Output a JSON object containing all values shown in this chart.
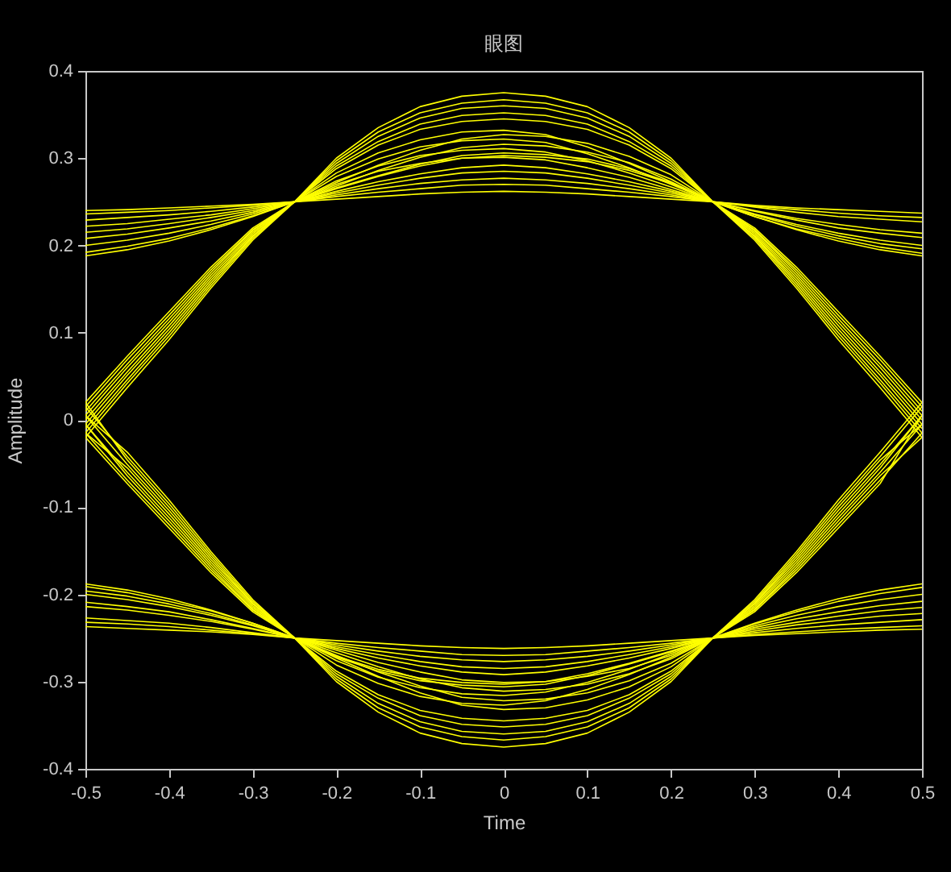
{
  "chart_data": {
    "type": "line",
    "title": "眼图",
    "xlabel": "Time",
    "ylabel": "Amplitude",
    "x": [
      -0.5,
      -0.45,
      -0.4,
      -0.35,
      -0.3,
      -0.25,
      -0.2,
      -0.15,
      -0.1,
      -0.05,
      0,
      0.05,
      0.1,
      0.15,
      0.2,
      0.25,
      0.3,
      0.35,
      0.4,
      0.45,
      0.5
    ],
    "xlim": [
      -0.5,
      0.5
    ],
    "ylim": [
      -0.4,
      0.4
    ],
    "xticks": [
      -0.5,
      -0.4,
      -0.3,
      -0.2,
      -0.1,
      0,
      0.1,
      0.2,
      0.3,
      0.4,
      0.5
    ],
    "yticks": [
      -0.4,
      -0.3,
      -0.2,
      -0.1,
      0,
      0.1,
      0.2,
      0.3,
      0.4
    ],
    "grid": false,
    "legend": false,
    "marker": "none",
    "line_style": "solid",
    "series": [
      {
        "color": "#ffff00",
        "values": [
          0.02,
          0.073,
          0.124,
          0.175,
          0.22,
          0.25,
          0.3,
          0.335,
          0.359,
          0.371,
          0.375,
          0.371,
          0.359,
          0.335,
          0.3,
          0.25,
          0.21,
          0.157,
          0.1,
          0.046,
          -0.01
        ]
      },
      {
        "color": "#ffff00",
        "values": [
          0.01,
          0.064,
          0.116,
          0.169,
          0.217,
          0.25,
          0.297,
          0.33,
          0.352,
          0.363,
          0.367,
          0.363,
          0.352,
          0.33,
          0.297,
          0.25,
          0.22,
          0.175,
          0.124,
          0.073,
          0.02
        ]
      },
      {
        "color": "#ffff00",
        "values": [
          0.0,
          0.055,
          0.108,
          0.163,
          0.213,
          0.25,
          0.294,
          0.325,
          0.346,
          0.357,
          0.36,
          0.357,
          0.346,
          0.325,
          0.294,
          0.25,
          0.206,
          0.151,
          0.092,
          0.037,
          -0.02
        ]
      },
      {
        "color": "#ffff00",
        "values": [
          -0.01,
          0.046,
          0.1,
          0.157,
          0.21,
          0.25,
          0.291,
          0.319,
          0.339,
          0.349,
          0.352,
          0.349,
          0.339,
          0.319,
          0.291,
          0.25,
          0.217,
          0.169,
          0.116,
          0.064,
          0.01
        ]
      },
      {
        "color": "#ffff00",
        "values": [
          -0.02,
          0.037,
          0.092,
          0.151,
          0.206,
          0.25,
          0.288,
          0.315,
          0.333,
          0.342,
          0.345,
          0.342,
          0.333,
          0.315,
          0.288,
          0.25,
          0.213,
          0.163,
          0.108,
          0.055,
          0.0
        ]
      },
      {
        "color": "#ffff00",
        "values": [
          0.015,
          0.069,
          0.12,
          0.172,
          0.218,
          0.25,
          0.283,
          0.306,
          0.321,
          0.33,
          0.332,
          0.327,
          0.313,
          0.294,
          0.273,
          0.25,
          0.245,
          0.241,
          0.237,
          0.234,
          0.232
        ]
      },
      {
        "color": "#ffff00",
        "values": [
          0.005,
          0.06,
          0.112,
          0.166,
          0.215,
          0.25,
          0.279,
          0.299,
          0.313,
          0.32,
          0.322,
          0.318,
          0.305,
          0.289,
          0.27,
          0.25,
          0.24,
          0.231,
          0.224,
          0.218,
          0.214
        ]
      },
      {
        "color": "#ffff00",
        "values": [
          -0.005,
          0.051,
          0.104,
          0.16,
          0.211,
          0.25,
          0.274,
          0.291,
          0.303,
          0.309,
          0.311,
          0.307,
          0.297,
          0.283,
          0.267,
          0.25,
          0.236,
          0.224,
          0.214,
          0.206,
          0.2
        ]
      },
      {
        "color": "#ffff00",
        "values": [
          -0.015,
          0.042,
          0.096,
          0.154,
          0.208,
          0.25,
          0.27,
          0.285,
          0.294,
          0.3,
          0.301,
          0.298,
          0.289,
          0.278,
          0.264,
          0.25,
          0.233,
          0.218,
          0.205,
          0.195,
          0.188
        ]
      },
      {
        "color": "#ffff00",
        "values": [
          0.236,
          0.238,
          0.24,
          0.243,
          0.246,
          0.25,
          0.272,
          0.292,
          0.309,
          0.322,
          0.327,
          0.325,
          0.317,
          0.302,
          0.281,
          0.25,
          0.218,
          0.172,
          0.12,
          0.069,
          0.015
        ]
      },
      {
        "color": "#ffff00",
        "values": [
          0.222,
          0.225,
          0.23,
          0.235,
          0.242,
          0.25,
          0.268,
          0.286,
          0.301,
          0.312,
          0.316,
          0.314,
          0.307,
          0.295,
          0.276,
          0.25,
          0.215,
          0.166,
          0.112,
          0.06,
          0.005
        ]
      },
      {
        "color": "#ffff00",
        "values": [
          0.208,
          0.213,
          0.22,
          0.228,
          0.238,
          0.25,
          0.266,
          0.28,
          0.293,
          0.303,
          0.306,
          0.304,
          0.299,
          0.288,
          0.272,
          0.25,
          0.211,
          0.16,
          0.104,
          0.051,
          -0.005
        ]
      },
      {
        "color": "#ffff00",
        "values": [
          0.192,
          0.199,
          0.208,
          0.22,
          0.234,
          0.25,
          0.265,
          0.279,
          0.291,
          0.3,
          0.303,
          0.301,
          0.296,
          0.286,
          0.271,
          0.25,
          0.208,
          0.154,
          0.096,
          0.042,
          -0.015
        ]
      },
      {
        "color": "#ffff00",
        "values": [
          0.24,
          0.241,
          0.243,
          0.245,
          0.247,
          0.25,
          0.262,
          0.273,
          0.282,
          0.289,
          0.292,
          0.289,
          0.282,
          0.273,
          0.262,
          0.25,
          0.246,
          0.243,
          0.241,
          0.239,
          0.237
        ]
      },
      {
        "color": "#ffff00",
        "values": [
          0.229,
          0.232,
          0.235,
          0.239,
          0.244,
          0.25,
          0.26,
          0.269,
          0.277,
          0.283,
          0.285,
          0.283,
          0.277,
          0.269,
          0.26,
          0.25,
          0.244,
          0.238,
          0.233,
          0.23,
          0.227
        ]
      },
      {
        "color": "#ffff00",
        "values": [
          0.215,
          0.219,
          0.225,
          0.232,
          0.24,
          0.25,
          0.258,
          0.265,
          0.271,
          0.275,
          0.277,
          0.275,
          0.271,
          0.265,
          0.258,
          0.25,
          0.239,
          0.229,
          0.22,
          0.214,
          0.209
        ]
      },
      {
        "color": "#ffff00",
        "values": [
          0.2,
          0.206,
          0.214,
          0.224,
          0.236,
          0.25,
          0.256,
          0.261,
          0.265,
          0.269,
          0.27,
          0.269,
          0.265,
          0.261,
          0.256,
          0.25,
          0.235,
          0.222,
          0.211,
          0.202,
          0.196
        ]
      },
      {
        "color": "#ffff00",
        "values": [
          0.188,
          0.195,
          0.205,
          0.218,
          0.233,
          0.25,
          0.253,
          0.256,
          0.259,
          0.261,
          0.262,
          0.261,
          0.259,
          0.256,
          0.253,
          0.25,
          0.233,
          0.219,
          0.208,
          0.198,
          0.191
        ]
      },
      {
        "color": "#ffff00",
        "values": [
          0.02,
          -0.046,
          -0.1,
          -0.157,
          -0.21,
          -0.25,
          -0.3,
          -0.335,
          -0.359,
          -0.371,
          -0.375,
          -0.371,
          -0.359,
          -0.335,
          -0.3,
          -0.25,
          -0.22,
          -0.175,
          -0.124,
          -0.073,
          0.005
        ]
      },
      {
        "color": "#ffff00",
        "values": [
          -0.02,
          -0.073,
          -0.124,
          -0.175,
          -0.22,
          -0.25,
          -0.297,
          -0.33,
          -0.352,
          -0.363,
          -0.367,
          -0.363,
          -0.352,
          -0.33,
          -0.297,
          -0.25,
          -0.217,
          -0.169,
          -0.116,
          -0.064,
          -0.02
        ]
      },
      {
        "color": "#ffff00",
        "values": [
          0.005,
          -0.037,
          -0.092,
          -0.151,
          -0.206,
          -0.25,
          -0.294,
          -0.325,
          -0.346,
          -0.357,
          -0.36,
          -0.357,
          -0.346,
          -0.325,
          -0.294,
          -0.25,
          -0.213,
          -0.163,
          -0.108,
          -0.055,
          0.005
        ]
      },
      {
        "color": "#ffff00",
        "values": [
          -0.005,
          -0.064,
          -0.116,
          -0.169,
          -0.217,
          -0.25,
          -0.291,
          -0.319,
          -0.339,
          -0.349,
          -0.352,
          -0.349,
          -0.339,
          -0.319,
          -0.291,
          -0.25,
          -0.21,
          -0.157,
          -0.1,
          -0.046,
          -0.005
        ]
      },
      {
        "color": "#ffff00",
        "values": [
          -0.015,
          -0.055,
          -0.108,
          -0.163,
          -0.213,
          -0.25,
          -0.288,
          -0.315,
          -0.333,
          -0.342,
          -0.345,
          -0.342,
          -0.333,
          -0.315,
          -0.288,
          -0.25,
          -0.206,
          -0.151,
          -0.092,
          -0.037,
          0.02
        ]
      },
      {
        "color": "#ffff00",
        "values": [
          -0.232,
          -0.234,
          -0.237,
          -0.241,
          -0.245,
          -0.25,
          -0.273,
          -0.294,
          -0.313,
          -0.327,
          -0.332,
          -0.33,
          -0.321,
          -0.306,
          -0.283,
          -0.25,
          -0.218,
          -0.172,
          -0.12,
          -0.069,
          -0.015
        ]
      },
      {
        "color": "#ffff00",
        "values": [
          -0.214,
          -0.218,
          -0.224,
          -0.231,
          -0.24,
          -0.25,
          -0.27,
          -0.289,
          -0.305,
          -0.318,
          -0.322,
          -0.32,
          -0.313,
          -0.299,
          -0.279,
          -0.25,
          -0.215,
          -0.166,
          -0.112,
          -0.06,
          -0.005
        ]
      },
      {
        "color": "#ffff00",
        "values": [
          -0.2,
          -0.206,
          -0.214,
          -0.224,
          -0.236,
          -0.25,
          -0.267,
          -0.283,
          -0.297,
          -0.307,
          -0.311,
          -0.309,
          -0.303,
          -0.291,
          -0.274,
          -0.25,
          -0.211,
          -0.16,
          -0.104,
          -0.051,
          0.005
        ]
      },
      {
        "color": "#ffff00",
        "values": [
          -0.188,
          -0.195,
          -0.205,
          -0.218,
          -0.233,
          -0.25,
          -0.264,
          -0.278,
          -0.289,
          -0.298,
          -0.301,
          -0.3,
          -0.294,
          -0.285,
          -0.27,
          -0.25,
          -0.208,
          -0.154,
          -0.096,
          -0.042,
          0.015
        ]
      },
      {
        "color": "#ffff00",
        "values": [
          -0.015,
          -0.069,
          -0.12,
          -0.172,
          -0.218,
          -0.25,
          -0.281,
          -0.302,
          -0.317,
          -0.325,
          -0.327,
          -0.322,
          -0.309,
          -0.292,
          -0.272,
          -0.25,
          -0.246,
          -0.243,
          -0.24,
          -0.238,
          -0.236
        ]
      },
      {
        "color": "#ffff00",
        "values": [
          -0.005,
          -0.06,
          -0.112,
          -0.166,
          -0.215,
          -0.25,
          -0.276,
          -0.295,
          -0.307,
          -0.314,
          -0.316,
          -0.312,
          -0.301,
          -0.286,
          -0.268,
          -0.25,
          -0.242,
          -0.235,
          -0.23,
          -0.225,
          -0.222
        ]
      },
      {
        "color": "#ffff00",
        "values": [
          0.005,
          -0.051,
          -0.104,
          -0.16,
          -0.211,
          -0.25,
          -0.272,
          -0.288,
          -0.299,
          -0.304,
          -0.306,
          -0.303,
          -0.293,
          -0.28,
          -0.266,
          -0.25,
          -0.238,
          -0.228,
          -0.22,
          -0.213,
          -0.208
        ]
      },
      {
        "color": "#ffff00",
        "values": [
          0.015,
          -0.042,
          -0.096,
          -0.154,
          -0.208,
          -0.25,
          -0.271,
          -0.286,
          -0.296,
          -0.301,
          -0.303,
          -0.3,
          -0.291,
          -0.279,
          -0.265,
          -0.25,
          -0.234,
          -0.22,
          -0.208,
          -0.199,
          -0.192
        ]
      },
      {
        "color": "#ffff00",
        "values": [
          -0.237,
          -0.239,
          -0.241,
          -0.243,
          -0.246,
          -0.25,
          -0.262,
          -0.273,
          -0.282,
          -0.289,
          -0.292,
          -0.289,
          -0.282,
          -0.273,
          -0.262,
          -0.25,
          -0.247,
          -0.245,
          -0.243,
          -0.241,
          -0.24
        ]
      },
      {
        "color": "#ffff00",
        "values": [
          -0.227,
          -0.23,
          -0.233,
          -0.238,
          -0.244,
          -0.25,
          -0.26,
          -0.269,
          -0.277,
          -0.283,
          -0.285,
          -0.283,
          -0.277,
          -0.269,
          -0.26,
          -0.25,
          -0.244,
          -0.239,
          -0.235,
          -0.232,
          -0.229
        ]
      },
      {
        "color": "#ffff00",
        "values": [
          -0.209,
          -0.214,
          -0.22,
          -0.229,
          -0.239,
          -0.25,
          -0.258,
          -0.265,
          -0.271,
          -0.275,
          -0.277,
          -0.275,
          -0.271,
          -0.265,
          -0.258,
          -0.25,
          -0.24,
          -0.232,
          -0.225,
          -0.219,
          -0.215
        ]
      },
      {
        "color": "#ffff00",
        "values": [
          -0.196,
          -0.202,
          -0.211,
          -0.222,
          -0.235,
          -0.25,
          -0.256,
          -0.261,
          -0.265,
          -0.269,
          -0.27,
          -0.269,
          -0.265,
          -0.261,
          -0.256,
          -0.25,
          -0.236,
          -0.224,
          -0.214,
          -0.206,
          -0.2
        ]
      },
      {
        "color": "#ffff00",
        "values": [
          -0.191,
          -0.198,
          -0.208,
          -0.219,
          -0.233,
          -0.25,
          -0.253,
          -0.256,
          -0.259,
          -0.261,
          -0.262,
          -0.261,
          -0.259,
          -0.256,
          -0.253,
          -0.25,
          -0.233,
          -0.218,
          -0.205,
          -0.195,
          -0.188
        ]
      }
    ]
  }
}
